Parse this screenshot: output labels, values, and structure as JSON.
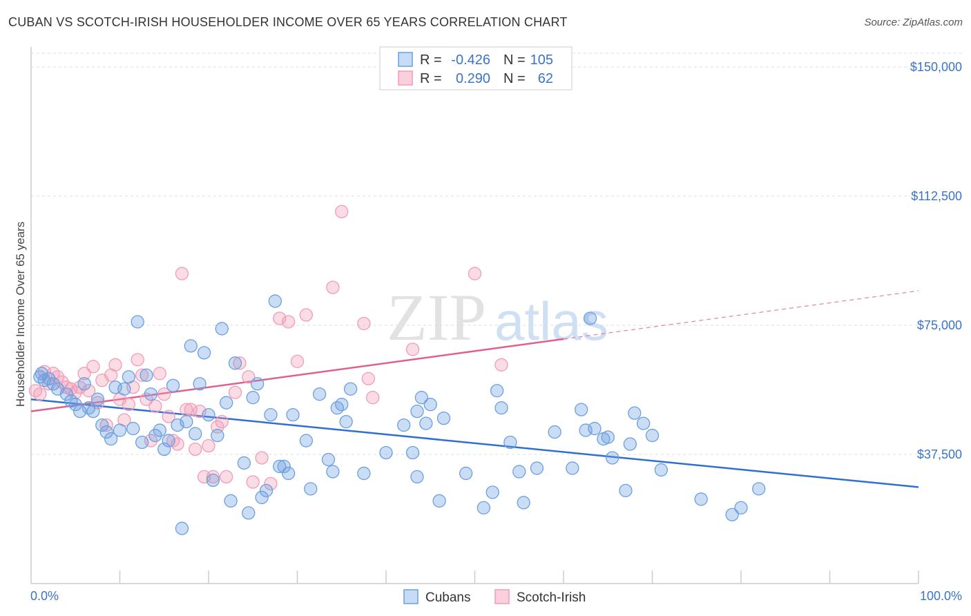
{
  "header": {
    "title": "CUBAN VS SCOTCH-IRISH HOUSEHOLDER INCOME OVER 65 YEARS CORRELATION CHART",
    "source": "Source: ZipAtlas.com"
  },
  "watermark": {
    "zip": "ZIP",
    "atlas": "atlas"
  },
  "legend": {
    "r_label": "R =",
    "n_label": "N =",
    "rows": [
      {
        "r": "-0.426",
        "n": "105"
      },
      {
        "r": "0.290",
        "n": "62"
      }
    ]
  },
  "colors": {
    "cubans": "#6a9fe0",
    "cubans_line": "#2e6fd0",
    "scotch": "#f29bb5",
    "scotch_line": "#e0608a",
    "axis_text": "#3a74c6"
  },
  "chart_data": {
    "type": "scatter",
    "title": "CUBAN VS SCOTCH-IRISH HOUSEHOLDER INCOME OVER 65 YEARS CORRELATION CHART",
    "xlabel": "",
    "ylabel": "Householder Income Over 65 years",
    "xlim": [
      0,
      100
    ],
    "ylim": [
      0,
      154000
    ],
    "x_tick_labels": [
      "0.0%",
      "100.0%"
    ],
    "y_ticks": [
      37500,
      75000,
      112500,
      150000
    ],
    "y_tick_labels": [
      "$37,500",
      "$75,000",
      "$112,500",
      "$150,000"
    ],
    "legend_position": "top-center",
    "series": [
      {
        "name": "Cubans",
        "r": -0.426,
        "n": 105,
        "trend": {
          "x": [
            0,
            100
          ],
          "y": [
            53500,
            28000
          ]
        },
        "points": [
          [
            1,
            60000
          ],
          [
            1.5,
            59000
          ],
          [
            2,
            59500
          ],
          [
            1.2,
            61000
          ],
          [
            2.5,
            58000
          ],
          [
            3,
            56500
          ],
          [
            4,
            55000
          ],
          [
            4.5,
            53000
          ],
          [
            5,
            52000
          ],
          [
            5.5,
            50000
          ],
          [
            6,
            58000
          ],
          [
            6.5,
            51000
          ],
          [
            7,
            50000
          ],
          [
            7.5,
            53500
          ],
          [
            8,
            46000
          ],
          [
            8.5,
            44000
          ],
          [
            9,
            42000
          ],
          [
            9.5,
            57000
          ],
          [
            10,
            44500
          ],
          [
            10.5,
            56500
          ],
          [
            11,
            60000
          ],
          [
            11.5,
            45000
          ],
          [
            12,
            76000
          ],
          [
            12.5,
            41000
          ],
          [
            13,
            60500
          ],
          [
            13.5,
            55000
          ],
          [
            14,
            43000
          ],
          [
            14.5,
            44500
          ],
          [
            15,
            39000
          ],
          [
            15.5,
            41500
          ],
          [
            16,
            57500
          ],
          [
            16.5,
            46000
          ],
          [
            17,
            16000
          ],
          [
            17.5,
            47000
          ],
          [
            18,
            69000
          ],
          [
            18.5,
            43500
          ],
          [
            19,
            58000
          ],
          [
            19.5,
            67000
          ],
          [
            20,
            49000
          ],
          [
            20.5,
            30000
          ],
          [
            21,
            43000
          ],
          [
            21.5,
            74000
          ],
          [
            22,
            52500
          ],
          [
            22.5,
            24000
          ],
          [
            23,
            64000
          ],
          [
            24,
            35000
          ],
          [
            24.5,
            20500
          ],
          [
            25,
            54000
          ],
          [
            25.5,
            58000
          ],
          [
            26,
            25000
          ],
          [
            26.5,
            27000
          ],
          [
            27,
            49000
          ],
          [
            27.5,
            82000
          ],
          [
            28,
            34000
          ],
          [
            28.5,
            34000
          ],
          [
            29,
            32000
          ],
          [
            29.5,
            49000
          ],
          [
            31,
            41500
          ],
          [
            31.5,
            27500
          ],
          [
            32.5,
            55000
          ],
          [
            33.5,
            36000
          ],
          [
            34,
            32500
          ],
          [
            34.5,
            51000
          ],
          [
            35,
            52000
          ],
          [
            35.5,
            47000
          ],
          [
            36,
            56500
          ],
          [
            37.5,
            32000
          ],
          [
            40,
            38000
          ],
          [
            42,
            46000
          ],
          [
            43,
            38000
          ],
          [
            43.5,
            50000
          ],
          [
            43.5,
            31000
          ],
          [
            44,
            54000
          ],
          [
            44.5,
            46500
          ],
          [
            45,
            52000
          ],
          [
            46,
            24000
          ],
          [
            46.5,
            48000
          ],
          [
            49,
            32000
          ],
          [
            51,
            22000
          ],
          [
            52,
            26500
          ],
          [
            52.5,
            56000
          ],
          [
            53,
            51000
          ],
          [
            54,
            41000
          ],
          [
            55,
            32500
          ],
          [
            55.5,
            23500
          ],
          [
            57,
            33500
          ],
          [
            59,
            44000
          ],
          [
            61,
            33500
          ],
          [
            62,
            50500
          ],
          [
            63,
            77000
          ],
          [
            63.5,
            45000
          ],
          [
            64.5,
            42000
          ],
          [
            65,
            42500
          ],
          [
            65.5,
            36500
          ],
          [
            67,
            27000
          ],
          [
            67.5,
            40500
          ],
          [
            68,
            49500
          ],
          [
            69,
            46500
          ],
          [
            70,
            43000
          ],
          [
            71,
            33000
          ],
          [
            75.5,
            24500
          ],
          [
            79,
            20000
          ],
          [
            80,
            22000
          ],
          [
            82,
            27500
          ],
          [
            62.5,
            44500
          ]
        ]
      },
      {
        "name": "Scotch-Irish",
        "r": 0.29,
        "n": 62,
        "trend": {
          "x": [
            0,
            60
          ],
          "y": [
            50000,
            71000
          ]
        },
        "trend_extension": {
          "x": [
            60,
            100
          ],
          "y": [
            71000,
            85000
          ]
        },
        "points": [
          [
            0.5,
            56000
          ],
          [
            1,
            55000
          ],
          [
            1.5,
            61500
          ],
          [
            2,
            58000
          ],
          [
            2.5,
            61000
          ],
          [
            3,
            60000
          ],
          [
            3.5,
            58500
          ],
          [
            4,
            57000
          ],
          [
            4.5,
            56500
          ],
          [
            5,
            55500
          ],
          [
            5.5,
            57000
          ],
          [
            6,
            61000
          ],
          [
            6.5,
            56000
          ],
          [
            7,
            63000
          ],
          [
            7.5,
            52500
          ],
          [
            8,
            59000
          ],
          [
            8.5,
            46000
          ],
          [
            9,
            60500
          ],
          [
            9.5,
            63500
          ],
          [
            10,
            53500
          ],
          [
            10.5,
            47500
          ],
          [
            11,
            52000
          ],
          [
            11.5,
            57000
          ],
          [
            12,
            65000
          ],
          [
            12.5,
            60500
          ],
          [
            13,
            53500
          ],
          [
            13.5,
            41500
          ],
          [
            14,
            51500
          ],
          [
            14.5,
            61000
          ],
          [
            15,
            55000
          ],
          [
            15.5,
            48500
          ],
          [
            16,
            41500
          ],
          [
            16.5,
            40500
          ],
          [
            17,
            90000
          ],
          [
            17.5,
            50500
          ],
          [
            18,
            50500
          ],
          [
            18.5,
            39000
          ],
          [
            19,
            50000
          ],
          [
            19.5,
            31000
          ],
          [
            20,
            40000
          ],
          [
            20.5,
            31000
          ],
          [
            21,
            45500
          ],
          [
            21.5,
            47000
          ],
          [
            22,
            31000
          ],
          [
            23,
            55500
          ],
          [
            23.5,
            64000
          ],
          [
            24.5,
            60000
          ],
          [
            25,
            29500
          ],
          [
            26,
            36500
          ],
          [
            27,
            29000
          ],
          [
            28,
            77000
          ],
          [
            29,
            76000
          ],
          [
            30,
            64500
          ],
          [
            31,
            78000
          ],
          [
            34,
            86000
          ],
          [
            35,
            108000
          ],
          [
            37.5,
            75500
          ],
          [
            38,
            59500
          ],
          [
            38.5,
            54000
          ],
          [
            43,
            68000
          ],
          [
            50,
            90000
          ],
          [
            53,
            63500
          ]
        ]
      }
    ]
  },
  "bottom_legend": {
    "items": [
      "Cubans",
      "Scotch-Irish"
    ]
  }
}
